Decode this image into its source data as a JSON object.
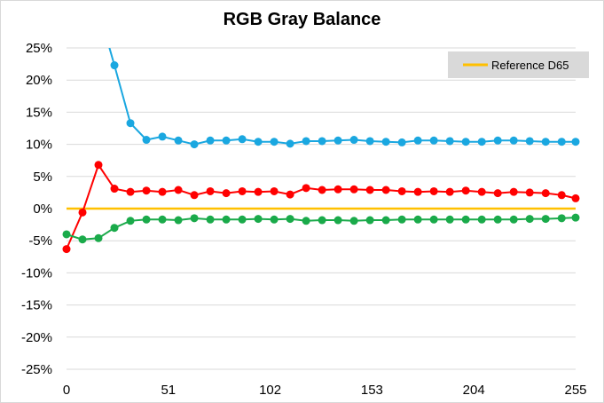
{
  "chart_data": {
    "type": "line",
    "title": "RGB Gray Balance",
    "xlabel": "",
    "ylabel": "",
    "xlim": [
      0,
      255
    ],
    "ylim": [
      -25,
      25
    ],
    "x_ticks": [
      0,
      51,
      102,
      153,
      204,
      255
    ],
    "y_ticks": [
      25,
      20,
      15,
      10,
      5,
      0,
      -5,
      -10,
      -15,
      -20,
      -25
    ],
    "y_tick_labels": [
      "25%",
      "20%",
      "15%",
      "10%",
      "5%",
      "0%",
      "-5%",
      "-10%",
      "-15%",
      "-20%",
      "-25%"
    ],
    "grid": true,
    "legend_position": "top-right",
    "x": [
      0,
      8,
      16,
      24,
      32,
      40,
      48,
      56,
      64,
      72,
      80,
      88,
      96,
      104,
      112,
      120,
      128,
      136,
      144,
      152,
      160,
      168,
      176,
      184,
      192,
      200,
      208,
      216,
      224,
      232,
      240,
      248,
      255
    ],
    "series": [
      {
        "color": "#1aa7e0",
        "values": [
          null,
          null,
          null,
          22.3,
          13.3,
          10.7,
          11.2,
          10.6,
          10.0,
          10.6,
          10.6,
          10.8,
          10.4,
          10.4,
          10.1,
          10.5,
          10.5,
          10.6,
          10.7,
          10.5,
          10.4,
          10.3,
          10.6,
          10.6,
          10.5,
          10.4,
          10.4,
          10.6,
          10.6,
          10.5,
          10.4,
          10.4,
          10.4
        ],
        "start_value": 31
      },
      {
        "color": "#ff0000",
        "values": [
          -6.3,
          -0.6,
          6.8,
          3.1,
          2.6,
          2.8,
          2.6,
          2.9,
          2.1,
          2.7,
          2.4,
          2.7,
          2.6,
          2.7,
          2.2,
          3.2,
          2.9,
          3.0,
          3.0,
          2.9,
          2.9,
          2.7,
          2.6,
          2.7,
          2.6,
          2.8,
          2.6,
          2.4,
          2.6,
          2.5,
          2.4,
          2.1,
          1.6
        ]
      },
      {
        "color": "#1aaa4a",
        "values": [
          -4.0,
          -4.8,
          -4.6,
          -3.0,
          -1.9,
          -1.7,
          -1.7,
          -1.8,
          -1.5,
          -1.7,
          -1.7,
          -1.7,
          -1.6,
          -1.7,
          -1.6,
          -1.9,
          -1.8,
          -1.8,
          -1.9,
          -1.8,
          -1.8,
          -1.7,
          -1.7,
          -1.7,
          -1.7,
          -1.7,
          -1.7,
          -1.7,
          -1.7,
          -1.6,
          -1.6,
          -1.5,
          -1.4
        ]
      }
    ],
    "reference": {
      "name": "Reference D65",
      "value": 0,
      "color": "#ffc000"
    }
  }
}
